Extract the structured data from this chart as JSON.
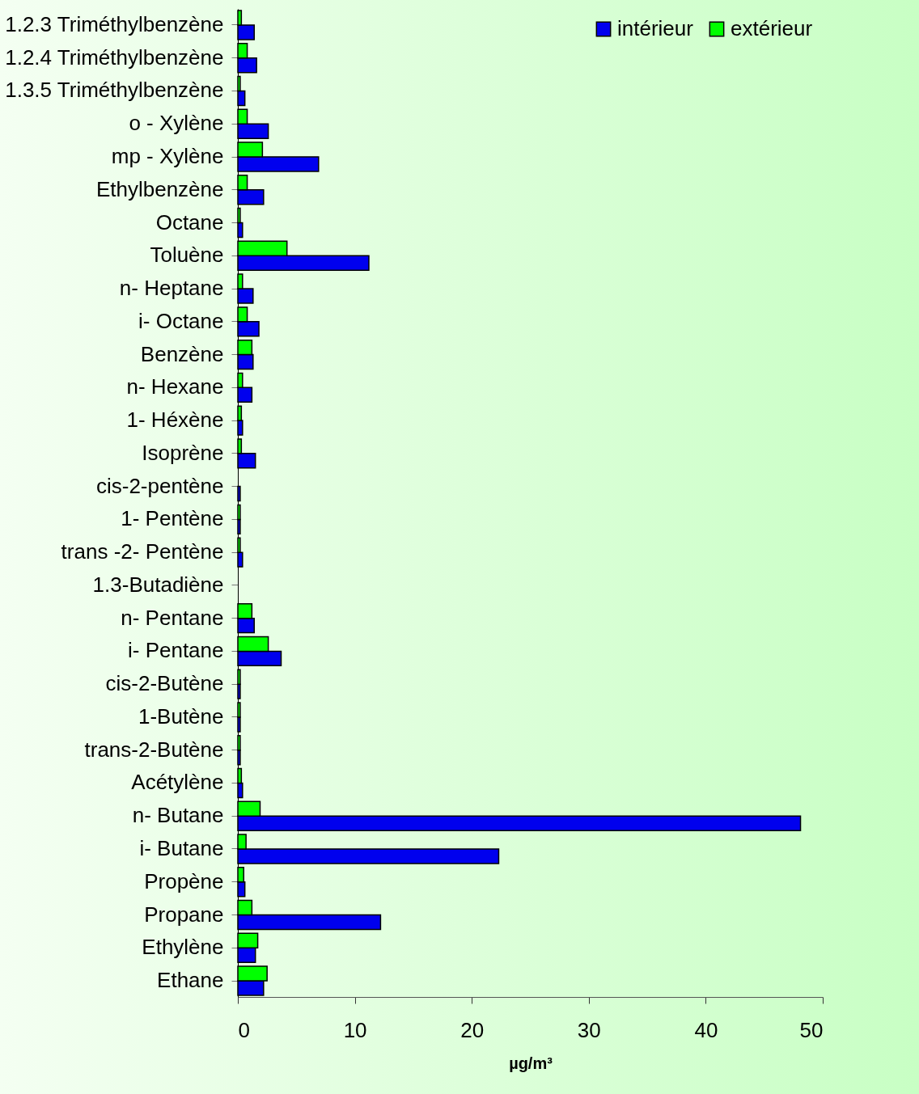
{
  "chart_data": {
    "type": "bar",
    "orientation": "horizontal",
    "xlabel": "µg/m³",
    "categories": [
      "1.2.3 Triméthylbenzène",
      "1.2.4 Triméthylbenzène",
      "1.3.5 Triméthylbenzène",
      "o - Xylène",
      "mp - Xylène",
      "Ethylbenzène",
      "Octane",
      "Toluène",
      "n- Heptane",
      "i- Octane",
      "Benzène",
      "n- Hexane",
      "1- Héxène",
      "Isoprène",
      "cis-2-pentène",
      "1- Pentène",
      "trans -2- Pentène",
      "1.3-Butadiène",
      "n- Pentane",
      "i- Pentane",
      "cis-2-Butène",
      "1-Butène",
      "trans-2-Butène",
      "Acétylène",
      "n- Butane",
      "i- Butane",
      "Propène",
      "Propane",
      "Ethylène",
      "Ethane"
    ],
    "series": [
      {
        "name": "intérieur",
        "color": "#0000ee",
        "values": [
          1.4,
          1.6,
          0.6,
          2.6,
          6.9,
          2.2,
          0.4,
          11.2,
          1.3,
          1.8,
          1.3,
          1.2,
          0.4,
          1.5,
          0.2,
          0.2,
          0.4,
          null,
          1.4,
          3.7,
          0.2,
          0.2,
          0.2,
          0.4,
          48.1,
          22.3,
          0.6,
          12.2,
          1.5,
          2.2
        ]
      },
      {
        "name": "extérieur",
        "color": "#00ff00",
        "values": [
          0.3,
          0.8,
          0.2,
          0.8,
          2.1,
          0.8,
          0.2,
          4.2,
          0.4,
          0.8,
          1.2,
          0.4,
          0.3,
          0.3,
          null,
          0.2,
          0.2,
          null,
          1.2,
          2.6,
          0.2,
          0.2,
          0.2,
          0.3,
          1.9,
          0.7,
          0.5,
          1.2,
          1.7,
          2.5
        ]
      }
    ],
    "xlim": [
      0,
      50
    ],
    "xticks": [
      0,
      10,
      20,
      30,
      40,
      50
    ],
    "grid": false,
    "legend": "top right"
  }
}
